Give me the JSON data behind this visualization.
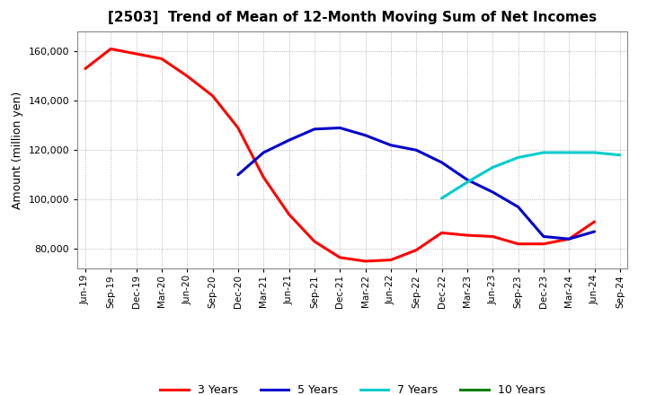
{
  "title": "[2503]  Trend of Mean of 12-Month Moving Sum of Net Incomes",
  "ylabel": "Amount (million yen)",
  "background_color": "#ffffff",
  "grid_color": "#999999",
  "x_labels": [
    "Jun-19",
    "Sep-19",
    "Dec-19",
    "Mar-20",
    "Jun-20",
    "Sep-20",
    "Dec-20",
    "Mar-21",
    "Jun-21",
    "Sep-21",
    "Dec-21",
    "Mar-22",
    "Jun-22",
    "Sep-22",
    "Dec-22",
    "Mar-23",
    "Jun-23",
    "Sep-23",
    "Dec-23",
    "Mar-24",
    "Jun-24",
    "Sep-24"
  ],
  "series": {
    "3 Years": {
      "color": "#ff0000",
      "data": [
        153000,
        161000,
        159000,
        157000,
        150000,
        142000,
        129000,
        109000,
        94000,
        83000,
        76500,
        75000,
        75500,
        79500,
        86500,
        85500,
        85000,
        82000,
        82000,
        84000,
        91000,
        null
      ]
    },
    "5 Years": {
      "color": "#0000cc",
      "data": [
        null,
        null,
        null,
        null,
        null,
        null,
        110000,
        119000,
        124000,
        128500,
        129000,
        126000,
        122000,
        120000,
        115000,
        108000,
        103000,
        97000,
        85000,
        84000,
        87000,
        null
      ]
    },
    "7 Years": {
      "color": "#00cccc",
      "data": [
        null,
        null,
        null,
        null,
        null,
        null,
        null,
        null,
        null,
        null,
        null,
        null,
        null,
        null,
        100500,
        107000,
        113000,
        117000,
        119000,
        119000,
        119000,
        118000
      ]
    },
    "10 Years": {
      "color": "#008000",
      "data": [
        null,
        null,
        null,
        null,
        null,
        null,
        null,
        null,
        null,
        null,
        null,
        null,
        null,
        null,
        null,
        null,
        null,
        null,
        null,
        null,
        null,
        null
      ]
    }
  },
  "ylim": [
    72000,
    168000
  ],
  "yticks": [
    80000,
    100000,
    120000,
    140000,
    160000
  ],
  "legend_labels": [
    "3 Years",
    "5 Years",
    "7 Years",
    "10 Years"
  ],
  "legend_colors": [
    "#ff0000",
    "#0000cc",
    "#00cccc",
    "#008000"
  ],
  "title_fontsize": 11,
  "ylabel_fontsize": 9,
  "tick_fontsize": 8,
  "xtick_fontsize": 7.5,
  "linewidth": 2.2
}
